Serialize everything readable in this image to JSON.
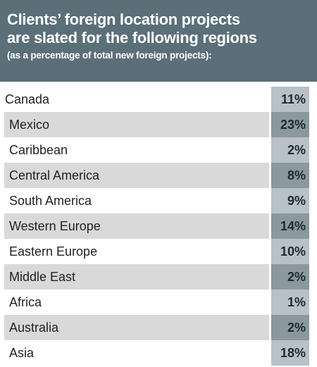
{
  "header": {
    "title_line1": "Clients’ foreign location projects",
    "title_line2": "are slated for the following regions",
    "subtitle": "(as a percentage of total new foreign projects):"
  },
  "colors": {
    "header_bg": "#5b6f79",
    "row_shade": "#d9d9da",
    "value_light": "#b7c1c7",
    "value_dark": "#8b999f"
  },
  "chart_data": {
    "type": "table",
    "title": "Clients’ foreign location projects are slated for the following regions",
    "subtitle": "(as a percentage of total new foreign projects):",
    "categories": [
      "Canada",
      "Mexico",
      "Caribbean",
      "Central America",
      "South America",
      "Western Europe",
      "Eastern Europe",
      "Middle East",
      "Africa",
      "Australia",
      "Asia"
    ],
    "values": [
      11,
      23,
      2,
      8,
      9,
      14,
      10,
      2,
      1,
      2,
      18
    ],
    "value_labels": [
      "11%",
      "23%",
      "2%",
      "8%",
      "9%",
      "14%",
      "10%",
      "2%",
      "1%",
      "2%",
      "18%"
    ],
    "unit": "%"
  }
}
